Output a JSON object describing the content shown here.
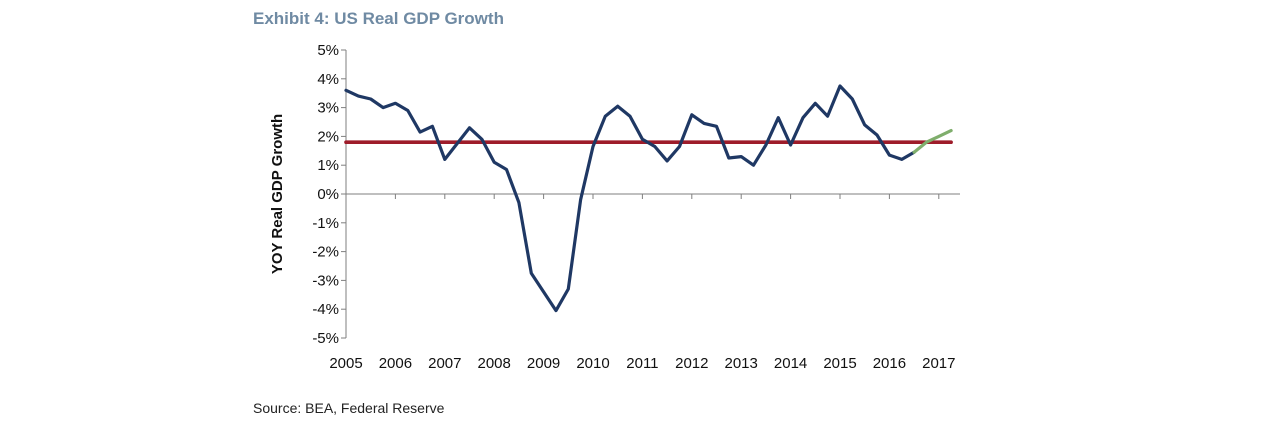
{
  "title": "Exhibit 4: US Real GDP Growth",
  "source": "Source: BEA, Federal Reserve",
  "colors": {
    "actual": "#1f3864",
    "forecast": "#7fae6c",
    "reference": "#9e1c2a",
    "title": "#6f8aa3"
  },
  "chart_data": {
    "type": "line",
    "title": "Exhibit 4: US Real GDP Growth",
    "xlabel": "",
    "ylabel": "YOY Real GDP Growth",
    "xlim": [
      2005,
      2017.25
    ],
    "ylim": [
      -5,
      5
    ],
    "y_ticks": [
      5,
      4,
      3,
      2,
      1,
      0,
      -1,
      -2,
      -3,
      -4,
      -5
    ],
    "y_tick_labels": [
      "5%",
      "4%",
      "3%",
      "2%",
      "1%",
      "0%",
      "-1%",
      "-2%",
      "-3%",
      "-4%",
      "-5%"
    ],
    "x_ticks": [
      2005,
      2006,
      2007,
      2008,
      2009,
      2010,
      2011,
      2012,
      2013,
      2014,
      2015,
      2016,
      2017
    ],
    "x_tick_labels": [
      "2005",
      "2006",
      "2007",
      "2008",
      "2009",
      "2010",
      "2011",
      "2012",
      "2013",
      "2014",
      "2015",
      "2016",
      "2017"
    ],
    "grid": false,
    "series": [
      {
        "type": "line",
        "color": "#1f3864",
        "x": [
          2005.0,
          2005.25,
          2005.5,
          2005.75,
          2006.0,
          2006.25,
          2006.5,
          2006.75,
          2007.0,
          2007.25,
          2007.5,
          2007.75,
          2008.0,
          2008.25,
          2008.5,
          2008.75,
          2009.0,
          2009.25,
          2009.5,
          2009.75,
          2010.0,
          2010.25,
          2010.5,
          2010.75,
          2011.0,
          2011.25,
          2011.5,
          2011.75,
          2012.0,
          2012.25,
          2012.5,
          2012.75,
          2013.0,
          2013.25,
          2013.5,
          2013.75,
          2014.0,
          2014.25,
          2014.5,
          2014.75,
          2015.0,
          2015.25,
          2015.5,
          2015.75,
          2016.0,
          2016.25,
          2016.5
        ],
        "y": [
          3.6,
          3.4,
          3.3,
          3.0,
          3.15,
          2.9,
          2.15,
          2.35,
          1.2,
          1.75,
          2.3,
          1.9,
          1.1,
          0.85,
          -0.3,
          -2.75,
          -3.4,
          -4.05,
          -3.3,
          -0.2,
          1.65,
          2.7,
          3.05,
          2.7,
          1.9,
          1.65,
          1.15,
          1.65,
          2.75,
          2.45,
          2.35,
          1.25,
          1.3,
          1.0,
          1.7,
          2.65,
          1.7,
          2.65,
          3.15,
          2.7,
          3.75,
          3.3,
          2.4,
          2.05,
          1.35,
          1.2,
          1.45
        ]
      },
      {
        "type": "line",
        "color": "#7fae6c",
        "x": [
          2016.5,
          2016.75,
          2017.0,
          2017.25
        ],
        "y": [
          1.45,
          1.8,
          2.0,
          2.2
        ]
      },
      {
        "type": "line",
        "color": "#9e1c2a",
        "x": [
          2005.0,
          2017.25
        ],
        "y": [
          1.8,
          1.8
        ]
      }
    ]
  }
}
